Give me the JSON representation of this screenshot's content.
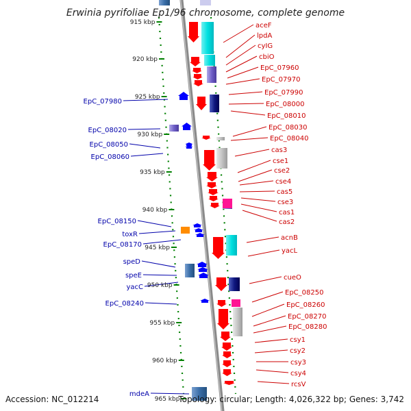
{
  "title": "Erwinia pyrifoliae Ep1/96 chromosome, complete genome",
  "footer": {
    "accession": "Accession: NC_012214",
    "topology": "Topology: circular; Length: 4,026,322 bp; Genes: 3,742"
  },
  "kbp_ticks": [
    "915 kbp",
    "920 kbp",
    "925 kbp",
    "930 kbp",
    "935 kbp",
    "940 kbp",
    "945 kbp",
    "950 kbp",
    "955 kbp",
    "960 kbp",
    "965 kbp"
  ],
  "right_genes": [
    "aceF",
    "lpdA",
    "cyIG",
    "cbiO",
    "EpC_07960",
    "EpC_07970",
    "EpC_07990",
    "EpC_08000",
    "EpC_08010",
    "EpC_08030",
    "EpC_08040",
    "cas3",
    "cse1",
    "cse2",
    "cse4",
    "cas5",
    "cse3",
    "cas1",
    "cas2",
    "acnB",
    "yacL",
    "cueO",
    "EpC_08250",
    "EpC_08260",
    "EpC_08270",
    "EpC_08280",
    "csy1",
    "csy2",
    "csy3",
    "csy4",
    "rcsV"
  ],
  "left_genes": [
    "EpC_07980",
    "EpC_08020",
    "EpC_08050",
    "EpC_08060",
    "EpC_08150",
    "toxR",
    "EpC_08170",
    "speD",
    "speE",
    "yacC",
    "EpC_08240",
    "mdeA"
  ],
  "colors": {
    "forward_gene": "#ff0000",
    "reverse_gene": "#0000ff",
    "axis": "#8a8a8a",
    "tick": "#008000",
    "right_label": "#cc0000",
    "left_label": "#0000aa"
  }
}
